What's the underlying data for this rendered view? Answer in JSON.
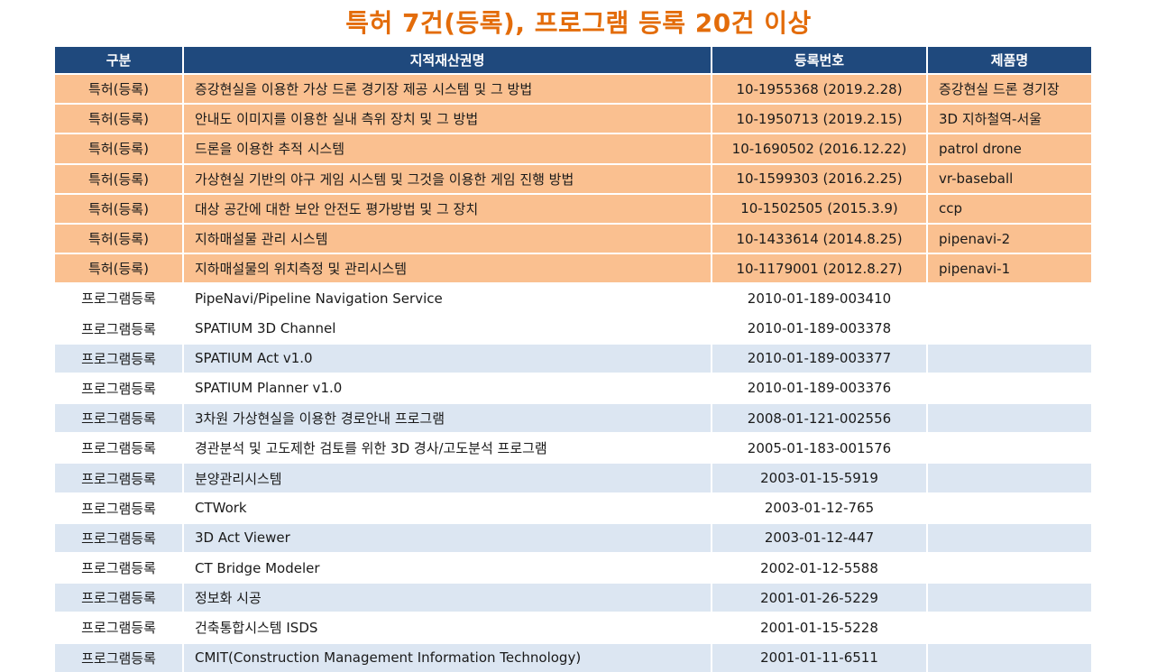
{
  "title": "특허 7건(등록), 프로그램 등록 20건 이상",
  "table": {
    "headers": [
      "구분",
      "지적재산권명",
      "등록번호",
      "제품명"
    ],
    "patents": [
      {
        "kind": "특허(등록)",
        "name": "증강현실을 이용한 가상 드론 경기장 제공 시스템 및 그 방법",
        "reg": "10-1955368 (2019.2.28)",
        "product": "증강현실 드론 경기장"
      },
      {
        "kind": "특허(등록)",
        "name": "안내도 이미지를 이용한 실내 측위 장치 및 그 방법",
        "reg": "10-1950713 (2019.2.15)",
        "product": "3D 지하철역-서울"
      },
      {
        "kind": "특허(등록)",
        "name": "드론을 이용한 추적 시스템",
        "reg": "10-1690502 (2016.12.22)",
        "product": "patrol drone"
      },
      {
        "kind": "특허(등록)",
        "name": "가상현실 기반의 야구 게임 시스템 및 그것을 이용한 게임 진행 방법",
        "reg": "10-1599303 (2016.2.25)",
        "product": "vr-baseball"
      },
      {
        "kind": "특허(등록)",
        "name": "대상 공간에 대한 보안 안전도 평가방법 및 그 장치",
        "reg": "10-1502505 (2015.3.9)",
        "product": "ccp"
      },
      {
        "kind": "특허(등록)",
        "name": "지하매설물 관리 시스템",
        "reg": "10-1433614 (2014.8.25)",
        "product": "pipenavi-2"
      },
      {
        "kind": "특허(등록)",
        "name": "지하매설물의 위치측정 및 관리시스템",
        "reg": "10-1179001 (2012.8.27)",
        "product": "pipenavi-1"
      }
    ],
    "programs": [
      {
        "kind": "프로그램등록",
        "name": "PipeNavi/Pipeline Navigation Service",
        "reg": "2010-01-189-003410",
        "product": ""
      },
      {
        "kind": "프로그램등록",
        "name": "SPATIUM 3D Channel",
        "reg": "2010-01-189-003378",
        "product": ""
      },
      {
        "kind": "프로그램등록",
        "name": "SPATIUM Act v1.0",
        "reg": "2010-01-189-003377",
        "product": ""
      },
      {
        "kind": "프로그램등록",
        "name": "SPATIUM Planner v1.0",
        "reg": "2010-01-189-003376",
        "product": ""
      },
      {
        "kind": "프로그램등록",
        "name": "3차원 가상현실을 이용한 경로안내 프로그램",
        "reg": "2008-01-121-002556",
        "product": ""
      },
      {
        "kind": "프로그램등록",
        "name": "경관분석 및 고도제한 검토를 위한 3D 경사/고도분석 프로그램",
        "reg": "2005-01-183-001576",
        "product": ""
      },
      {
        "kind": "프로그램등록",
        "name": "분양관리시스템",
        "reg": "2003-01-15-5919",
        "product": ""
      },
      {
        "kind": "프로그램등록",
        "name": "CTWork",
        "reg": "2003-01-12-765",
        "product": ""
      },
      {
        "kind": "프로그램등록",
        "name": "3D Act Viewer",
        "reg": "2003-01-12-447",
        "product": ""
      },
      {
        "kind": "프로그램등록",
        "name": "CT Bridge Modeler",
        "reg": "2002-01-12-5588",
        "product": ""
      },
      {
        "kind": "프로그램등록",
        "name": "정보화 시공",
        "reg": "2001-01-26-5229",
        "product": ""
      },
      {
        "kind": "프로그램등록",
        "name": "건축통합시스템 ISDS",
        "reg": "2001-01-15-5228",
        "product": ""
      },
      {
        "kind": "프로그램등록",
        "name": "CMIT(Construction Management Information Technology)",
        "reg": "2001-01-11-6511",
        "product": ""
      }
    ]
  },
  "colors": {
    "title": "#E36C0A",
    "header_bg": "#1F497D",
    "patent_row": "#FAC090",
    "program_row_alt": "#DCE6F2"
  }
}
